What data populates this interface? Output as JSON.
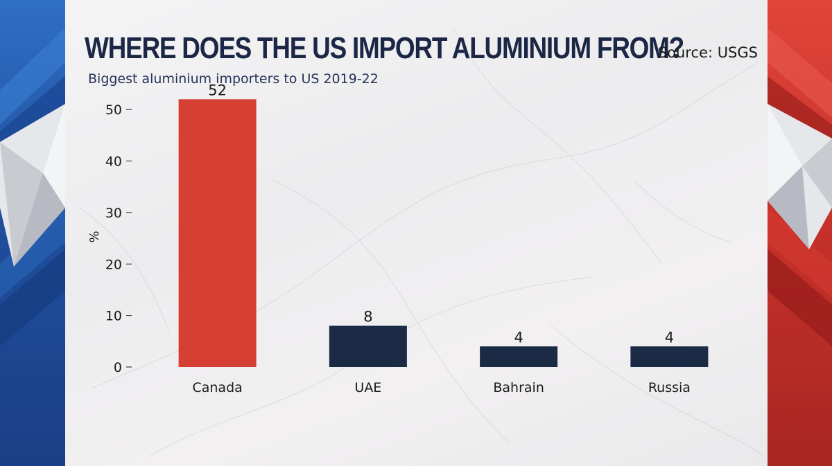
{
  "header": {
    "title": "WHERE DOES THE US IMPORT ALUMINIUM FROM?",
    "subtitle": "Biggest aluminium importers to US 2019-22",
    "source": "Source: USGS"
  },
  "colors": {
    "highlight_bar": "#d63f33",
    "default_bar": "#1b2a45",
    "left_panel": "#1f4f9e",
    "right_panel": "#c8322b"
  },
  "chart_data": {
    "type": "bar",
    "title": "WHERE DOES THE US IMPORT ALUMINIUM FROM?",
    "subtitle": "Biggest aluminium importers to US 2019-22",
    "categories": [
      "Canada",
      "UAE",
      "Bahrain",
      "Russia"
    ],
    "values": [
      52,
      8,
      4,
      4
    ],
    "highlighted": [
      "Canada"
    ],
    "xlabel": "",
    "ylabel": "%",
    "ylim": [
      0,
      55
    ],
    "yticks": [
      0,
      10,
      20,
      30,
      40,
      50
    ],
    "grid": false,
    "legend": "none",
    "data_labels": true
  }
}
